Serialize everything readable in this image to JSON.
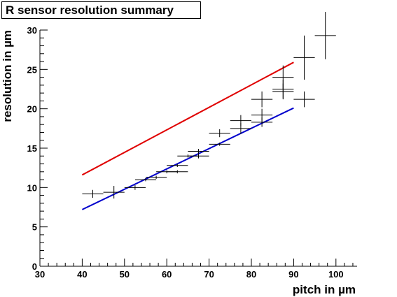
{
  "chart_data": {
    "type": "scatter",
    "title": "R sensor resolution summary",
    "xlabel": "pitch in µm",
    "ylabel": "resolution in µm",
    "xlim": [
      30,
      105
    ],
    "ylim": [
      0,
      30
    ],
    "x_ticks": [
      30,
      40,
      50,
      60,
      70,
      80,
      90,
      100
    ],
    "y_ticks": [
      0,
      5,
      10,
      15,
      20,
      25,
      30
    ],
    "points": [
      {
        "x": 42.5,
        "y": 9.2,
        "xerr": 2.5,
        "yerr": 0.5
      },
      {
        "x": 47.5,
        "y": 9.4,
        "xerr": 2.5,
        "yerr": 0.8
      },
      {
        "x": 52.5,
        "y": 10.0,
        "xerr": 2.5,
        "yerr": 0.3
      },
      {
        "x": 55.0,
        "y": 11.0,
        "xerr": 2.5,
        "yerr": 0.2
      },
      {
        "x": 57.5,
        "y": 11.3,
        "xerr": 2.5,
        "yerr": 0.2
      },
      {
        "x": 60.0,
        "y": 12.0,
        "xerr": 2.5,
        "yerr": 0.2
      },
      {
        "x": 62.5,
        "y": 12.0,
        "xerr": 2.5,
        "yerr": 0.2
      },
      {
        "x": 62.5,
        "y": 12.8,
        "xerr": 2.5,
        "yerr": 0.2
      },
      {
        "x": 65.0,
        "y": 14.0,
        "xerr": 2.5,
        "yerr": 0.2
      },
      {
        "x": 67.5,
        "y": 14.0,
        "xerr": 2.5,
        "yerr": 0.3
      },
      {
        "x": 67.5,
        "y": 14.6,
        "xerr": 2.5,
        "yerr": 0.3
      },
      {
        "x": 72.5,
        "y": 15.5,
        "xerr": 2.5,
        "yerr": 0.2
      },
      {
        "x": 72.5,
        "y": 16.9,
        "xerr": 2.5,
        "yerr": 0.5
      },
      {
        "x": 77.5,
        "y": 17.5,
        "xerr": 2.5,
        "yerr": 0.7
      },
      {
        "x": 77.5,
        "y": 18.5,
        "xerr": 2.5,
        "yerr": 0.7
      },
      {
        "x": 82.5,
        "y": 18.3,
        "xerr": 2.5,
        "yerr": 0.6
      },
      {
        "x": 82.5,
        "y": 19.2,
        "xerr": 2.5,
        "yerr": 0.8
      },
      {
        "x": 82.5,
        "y": 21.2,
        "xerr": 2.5,
        "yerr": 1.0
      },
      {
        "x": 87.5,
        "y": 22.2,
        "xerr": 2.5,
        "yerr": 1.0
      },
      {
        "x": 87.5,
        "y": 22.5,
        "xerr": 2.5,
        "yerr": 1.2
      },
      {
        "x": 87.5,
        "y": 24.0,
        "xerr": 2.5,
        "yerr": 1.5
      },
      {
        "x": 92.5,
        "y": 21.2,
        "xerr": 2.5,
        "yerr": 1.0
      },
      {
        "x": 92.5,
        "y": 26.5,
        "xerr": 2.5,
        "yerr": 2.8
      },
      {
        "x": 97.5,
        "y": 29.3,
        "xerr": 2.5,
        "yerr": 3.0
      }
    ],
    "lines": [
      {
        "color": "#e00000",
        "x": [
          40,
          90
        ],
        "y": [
          11.6,
          25.9
        ]
      },
      {
        "color": "#0000cc",
        "x": [
          40,
          90
        ],
        "y": [
          7.2,
          20.1
        ]
      }
    ],
    "grid": false
  }
}
